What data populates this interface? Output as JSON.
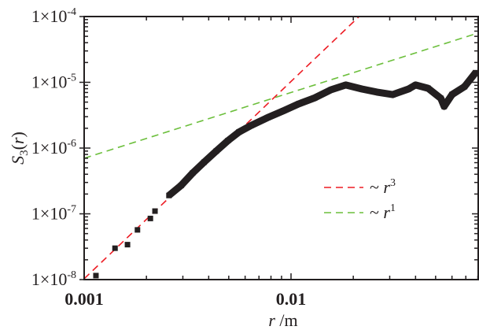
{
  "chart_data": {
    "type": "scatter",
    "xlabel": "r /m",
    "ylabel": "S3(r)",
    "xscale": "log",
    "yscale": "log",
    "xlim": [
      0.001,
      0.08
    ],
    "ylim": [
      1e-08,
      0.0001
    ],
    "x_ticks": [
      {
        "value": 0.001,
        "label": "0.001"
      },
      {
        "value": 0.01,
        "label": "0.01"
      }
    ],
    "y_ticks": [
      {
        "value": 1e-08,
        "mant": "1×10",
        "exp": "-8"
      },
      {
        "value": 1e-07,
        "mant": "1×10",
        "exp": "-7"
      },
      {
        "value": 1e-06,
        "mant": "1×10",
        "exp": "-6"
      },
      {
        "value": 1e-05,
        "mant": "1×10",
        "exp": "-5"
      },
      {
        "value": 0.0001,
        "mant": "1×10",
        "exp": "-4"
      }
    ],
    "grid": false,
    "legend_placement": "center-right",
    "series": [
      {
        "kind": "markers",
        "color": "#231f20",
        "x": [
          0.00114,
          0.00141,
          0.00162,
          0.00181,
          0.00209,
          0.0022,
          0.00257,
          0.00294,
          0.00335,
          0.0038,
          0.00435,
          0.00496,
          0.0056,
          0.0064,
          0.0077,
          0.0092,
          0.0109,
          0.013,
          0.0156,
          0.0184,
          0.022,
          0.026,
          0.031,
          0.037,
          0.04,
          0.046,
          0.053,
          0.055,
          0.06,
          0.069,
          0.078
        ],
        "y": [
          1.15e-08,
          3e-08,
          3.4e-08,
          5.7e-08,
          8.5e-08,
          1.1e-07,
          1.9e-07,
          2.7e-07,
          4.2e-07,
          6.1e-07,
          9e-07,
          1.3e-06,
          1.75e-06,
          2.2e-06,
          2.9e-06,
          3.7e-06,
          4.7e-06,
          5.8e-06,
          7.7e-06,
          9.1e-06,
          7.9e-06,
          7.1e-06,
          6.5e-06,
          7.9e-06,
          9.1e-06,
          8.1e-06,
          5.7e-06,
          4.3e-06,
          6.5e-06,
          8.6e-06,
          1.4e-05
        ]
      },
      {
        "kind": "dashed-line",
        "name": "~ r",
        "exp": "3",
        "color": "#ed1c24",
        "power": 3,
        "coef": 10.3
      },
      {
        "kind": "dashed-line",
        "name": "~ r",
        "exp": "1",
        "color": "#6cbf3c",
        "power": 1,
        "coef": 0.0007
      }
    ]
  }
}
